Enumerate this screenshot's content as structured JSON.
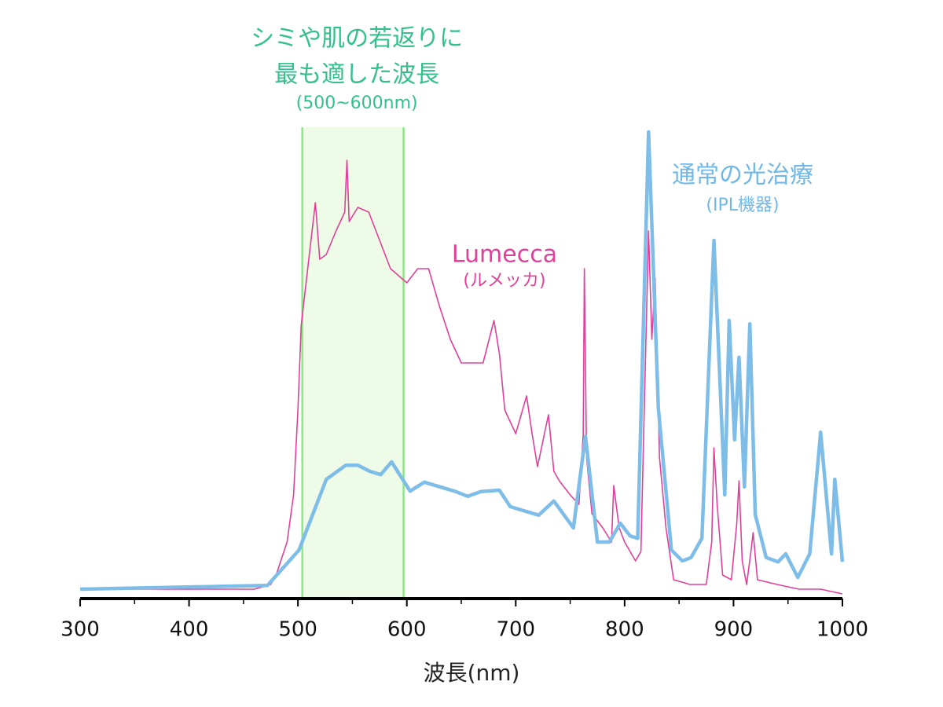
{
  "chart_data": {
    "type": "line",
    "x_label": "波長(nm)",
    "xlim": [
      300,
      1000
    ],
    "xticks": [
      300,
      400,
      500,
      600,
      700,
      800,
      900,
      1000
    ],
    "xminorticks": [
      350,
      450,
      550,
      650,
      750,
      850,
      950
    ],
    "ylim": [
      0,
      100
    ],
    "highlight": {
      "range": [
        504,
        597
      ],
      "color": "#eefbe6",
      "edge_color": "#8fe68a",
      "label": [
        "シミや肌の若返りに",
        "最も適した波長",
        "(500~600nm)"
      ]
    },
    "series": [
      {
        "name": "Lumecca",
        "subname": "(ルメッカ)",
        "color": "#e0409a",
        "x": [
          300,
          380,
          420,
          460,
          475,
          480,
          490,
          496,
          500,
          503,
          507,
          516,
          520,
          526,
          535,
          543,
          545,
          547,
          555,
          565,
          575,
          585,
          595,
          600,
          610,
          620,
          630,
          640,
          650,
          660,
          670,
          680,
          685,
          690,
          700,
          710,
          715,
          720,
          730,
          735,
          740,
          750,
          758,
          762,
          763,
          765,
          770,
          780,
          788,
          790,
          795,
          800,
          810,
          815,
          818,
          822,
          825,
          828,
          832,
          838,
          845,
          860,
          875,
          880,
          882,
          885,
          890,
          898,
          903,
          905,
          908,
          912,
          916,
          918,
          922,
          940,
          960,
          980,
          1000
        ],
        "values": [
          2,
          2,
          2,
          2,
          3,
          5,
          12,
          22,
          40,
          58,
          66,
          84,
          72,
          73,
          78,
          82,
          93,
          80,
          83,
          82,
          76,
          70,
          68,
          67,
          70,
          70,
          62,
          55,
          50,
          50,
          50,
          59,
          52,
          40,
          35,
          43,
          35,
          28,
          39,
          27,
          25,
          22,
          20,
          35,
          70,
          30,
          18,
          15,
          12,
          24,
          15,
          12,
          8,
          10,
          40,
          78,
          55,
          68,
          30,
          15,
          4,
          3,
          3,
          12,
          32,
          20,
          5,
          4,
          16,
          25,
          8,
          3,
          10,
          14,
          4,
          3,
          2,
          2,
          1
        ]
      },
      {
        "name": "通常の光治療",
        "subname": "(IPL機器)",
        "color": "#7dbde8",
        "x": [
          300,
          472,
          501,
          526,
          544,
          555,
          566,
          576,
          586,
          603,
          616,
          645,
          656,
          668,
          685,
          695,
          721,
          735,
          753,
          764,
          775,
          786,
          796,
          805,
          812,
          822,
          831,
          843,
          853,
          861,
          871,
          882,
          892,
          896,
          901,
          905,
          910,
          915,
          920,
          930,
          941,
          948,
          959,
          970,
          980,
          990,
          993,
          1000
        ],
        "values": [
          2,
          2.8,
          10.3,
          25.3,
          28.3,
          28.3,
          27,
          26.3,
          29,
          22.8,
          24.7,
          22.7,
          21.7,
          22.7,
          23,
          19.5,
          17.7,
          20.7,
          15,
          34.5,
          12,
          12,
          16,
          13.3,
          12.8,
          99,
          40.3,
          10.3,
          8,
          8.7,
          12.8,
          76,
          22,
          59,
          33.7,
          51.2,
          23.7,
          58.3,
          17.8,
          8.7,
          7.8,
          9.5,
          4.5,
          9.5,
          35.3,
          9.5,
          25.3,
          7.8
        ]
      }
    ]
  }
}
